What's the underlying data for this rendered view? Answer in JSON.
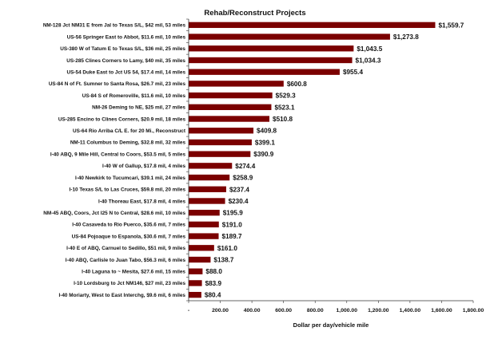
{
  "chart_data": {
    "type": "bar",
    "orientation": "horizontal",
    "title": "Rehab/Reconstruct Projects",
    "xlabel": "Dollar per day/vehicle mile",
    "ylabel": "",
    "xlim": [
      0,
      1800
    ],
    "x_ticks": [
      "-",
      "200.00",
      "400.00",
      "600.00",
      "800.00",
      "1,000.00",
      "1,200.00",
      "1,400.00",
      "1,600.00",
      "1,800.00"
    ],
    "grid": false,
    "legend": "none",
    "bar_color": "#7b0000",
    "categories": [
      "NM-128 Jct NM31 E from Jal to Texas S/L, $42 mil, 53 miles",
      "US-56 Springer East to Abbot, $11.6 mil, 10 miles",
      "US-380 W of Tatum E to Texas S/L, $36 mil, 25 miles",
      "US-285 Clines Corners to Lamy, $40 mil, 35 miles",
      "US-54 Duke East to Jct US 54, $17.4 mil, 14 miles",
      "US-84 N of Ft. Sumner to Santa Rosa, $26.7 mil, 23 miles",
      "US-84 S of Romeroville, $11.6 mil, 10 miles",
      "NM-26 Deming to NE, $25 mil, 27 miles",
      "US-285 Encino to Clines Corners, $20.9 mil, 18 miles",
      "US-64 Rio Arriba C/L E. for 20 Mi., Reconstruct",
      "NM-11 Columbus to Deming, $32.8 mil, 32 miles",
      "I-40 ABQ, 9 Mile Hill, Central to Coors, $53.5 mil, 5 miles",
      "I-40 W of Gallup, $17.8 mil, 4 miles",
      "I-40 Newkirk to Tucumcari, $39.1 mil, 24 miles",
      "I-10 Texas S/L to Las Cruces, $59.8 mil, 20 miles",
      "I-40 Thoreau East, $17.8 mil, 4 miles",
      "NM-45 ABQ, Coors, Jct I25 N to Central, $28.6 mil, 10 miles",
      "I-40 Casaveda to Rio Puerco, $35.6 mil, 7 miles",
      "US-84 Pojoaque to Espanola, $30.6 mil, 7 miles",
      "I-40 E of ABQ, Carnuel to Sedillo, $51 mil, 9 miles",
      "I-40 ABQ, Carlisle to Juan Tabo, $56.3 mil, 6 miles",
      "I-40 Laguna to ~ Mesita, $27.6 mil, 15 miles",
      "I-10 Lordsburg to Jct NM146, $27 mil, 23 miles",
      "I-40 Moriarty, West to East Interchg, $9.6 mil, 6 miles"
    ],
    "values": [
      1559.7,
      1273.8,
      1043.5,
      1034.3,
      955.4,
      600.8,
      529.3,
      523.1,
      510.8,
      409.8,
      399.1,
      390.9,
      274.4,
      258.9,
      237.4,
      230.4,
      195.9,
      191.0,
      189.7,
      161.0,
      138.7,
      88.0,
      83.9,
      80.4
    ],
    "value_labels": [
      "$1,559.7",
      "$1,273.8",
      "$1,043.5",
      "$1,034.3",
      "$955.4",
      "$600.8",
      "$529.3",
      "$523.1",
      "$510.8",
      "$409.8",
      "$399.1",
      "$390.9",
      "$274.4",
      "$258.9",
      "$237.4",
      "$230.4",
      "$195.9",
      "$191.0",
      "$189.7",
      "$161.0",
      "$138.7",
      "$88.0",
      "$83.9",
      "$80.4"
    ]
  }
}
